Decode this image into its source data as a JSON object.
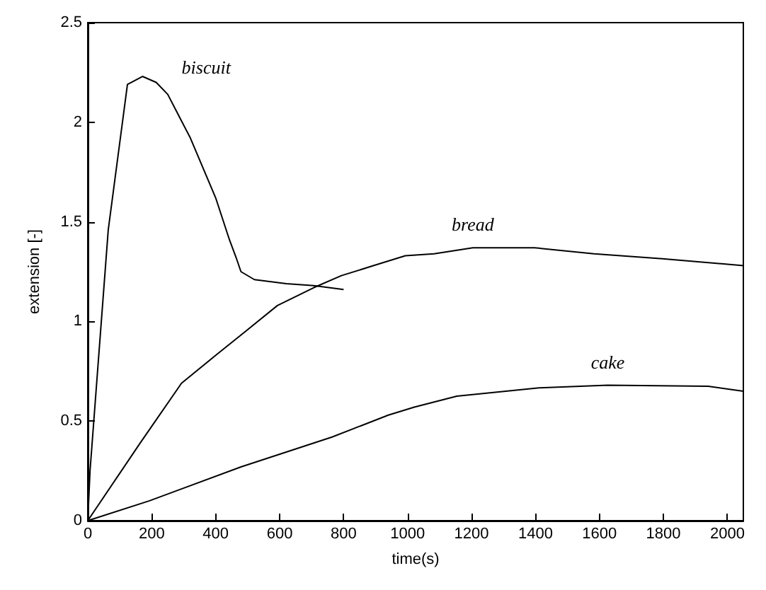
{
  "chart_data": {
    "type": "line",
    "xlabel": "time(s)",
    "ylabel": "extension [-]",
    "xlim": [
      0,
      2050
    ],
    "xticks": [
      0,
      200,
      400,
      600,
      800,
      1000,
      1200,
      1400,
      1600,
      1800,
      2000
    ],
    "ylim": [
      0,
      2.5
    ],
    "yticks": [
      0,
      0.5,
      1,
      1.5,
      2,
      2.5
    ],
    "grid": false,
    "legend": false,
    "marker": "none",
    "line_style": "solid",
    "series": [
      {
        "name": "biscuit",
        "color": "#000000",
        "x": [
          0,
          7,
          64,
          124,
          171,
          214,
          250,
          321,
          400,
          443,
          464,
          479,
          521,
          621,
          707,
          800
        ],
        "values": [
          0,
          0.25,
          1.46,
          2.19,
          2.23,
          2.2,
          2.14,
          1.92,
          1.62,
          1.41,
          1.32,
          1.25,
          1.21,
          1.19,
          1.18,
          1.16
        ]
      },
      {
        "name": "bread",
        "color": "#000000",
        "x": [
          0,
          164,
          293,
          400,
          493,
          593,
          707,
          793,
          893,
          993,
          1083,
          1204,
          1397,
          1583,
          1797,
          2050
        ],
        "values": [
          0,
          0.39,
          0.69,
          0.83,
          0.95,
          1.08,
          1.17,
          1.23,
          1.28,
          1.33,
          1.34,
          1.37,
          1.37,
          1.34,
          1.315,
          1.28
        ]
      },
      {
        "name": "cake",
        "color": "#000000",
        "x": [
          0,
          193,
          479,
          764,
          940,
          1021,
          1154,
          1411,
          1626,
          1940,
          2050
        ],
        "values": [
          0,
          0.1,
          0.27,
          0.42,
          0.53,
          0.57,
          0.625,
          0.667,
          0.68,
          0.675,
          0.65
        ]
      }
    ]
  }
}
